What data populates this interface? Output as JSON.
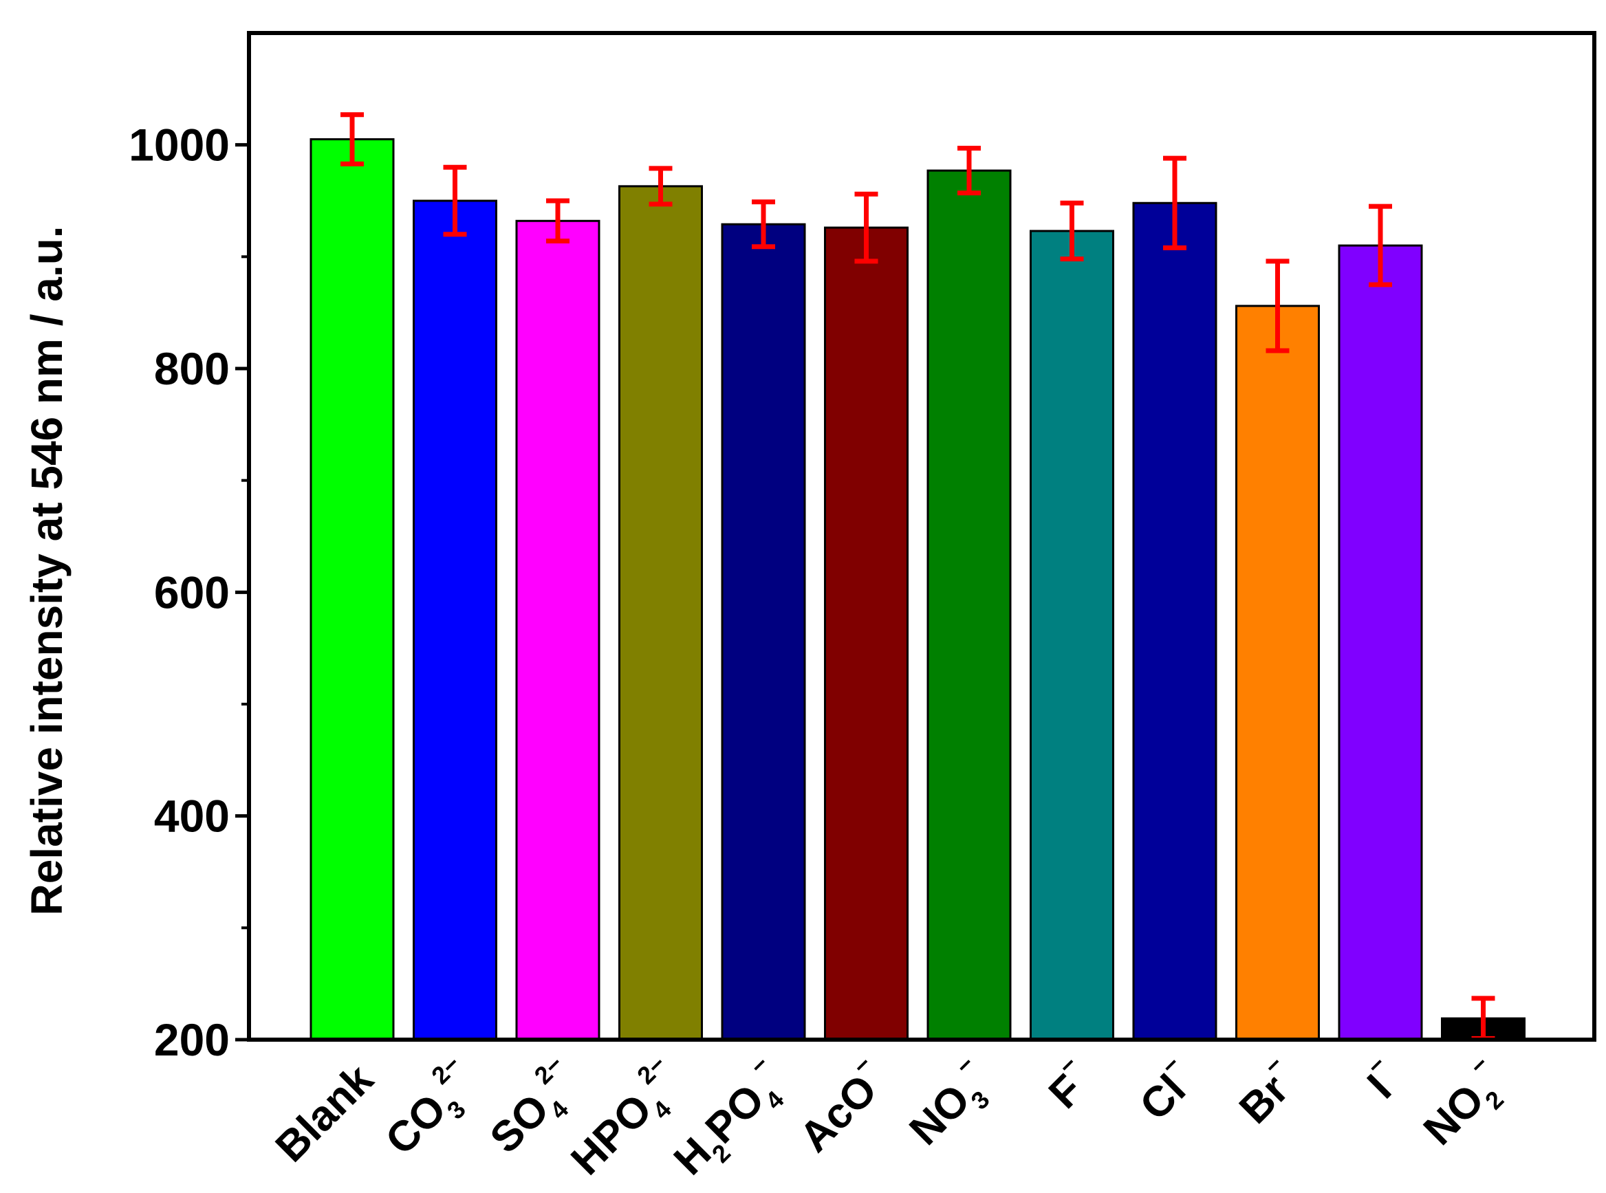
{
  "chart_data": {
    "type": "bar",
    "title": "",
    "xlabel": "",
    "ylabel": "Relative intensity at 546 nm / a.u.",
    "ylim": [
      200,
      1100
    ],
    "yticks": [
      200,
      400,
      600,
      800,
      1000
    ],
    "yticks_minor": [
      300,
      500,
      700,
      900
    ],
    "grid": false,
    "categories": [
      {
        "label": "Blank",
        "base": "Blank",
        "sub": "",
        "sup": ""
      },
      {
        "label": "CO3 2−",
        "base": "CO",
        "sub": "3",
        "sup": "2−"
      },
      {
        "label": "SO4 2−",
        "base": "SO",
        "sub": "4",
        "sup": "2−"
      },
      {
        "label": "HPO4 2−",
        "base": "HPO",
        "sub": "4",
        "sup": "2−"
      },
      {
        "label": "H2PO4 −",
        "base": "H",
        "sub": "2",
        "base2": "PO",
        "sub2": "4",
        "sup": "−"
      },
      {
        "label": "AcO−",
        "base": "AcO",
        "sub": "",
        "sup": "−"
      },
      {
        "label": "NO3 −",
        "base": "NO",
        "sub": "3",
        "sup": "−"
      },
      {
        "label": "F−",
        "base": "F",
        "sub": "",
        "sup": "−"
      },
      {
        "label": "Cl−",
        "base": "Cl",
        "sub": "",
        "sup": "−"
      },
      {
        "label": "Br−",
        "base": "Br",
        "sub": "",
        "sup": "−"
      },
      {
        "label": "I−",
        "base": "I",
        "sub": "",
        "sup": "−"
      },
      {
        "label": "NO2 −",
        "base": "NO",
        "sub": "2",
        "sup": "−"
      }
    ],
    "values": [
      1005,
      950,
      932,
      963,
      929,
      926,
      977,
      923,
      948,
      856,
      910,
      219
    ],
    "errors": [
      22,
      30,
      18,
      16,
      20,
      30,
      20,
      25,
      40,
      40,
      35,
      18
    ],
    "colors": [
      "#00ff00",
      "#0000ff",
      "#ff00ff",
      "#808000",
      "#000080",
      "#800000",
      "#008000",
      "#008080",
      "#000099",
      "#ff8000",
      "#8000ff",
      "#000000"
    ],
    "error_color": "#ff0000"
  }
}
